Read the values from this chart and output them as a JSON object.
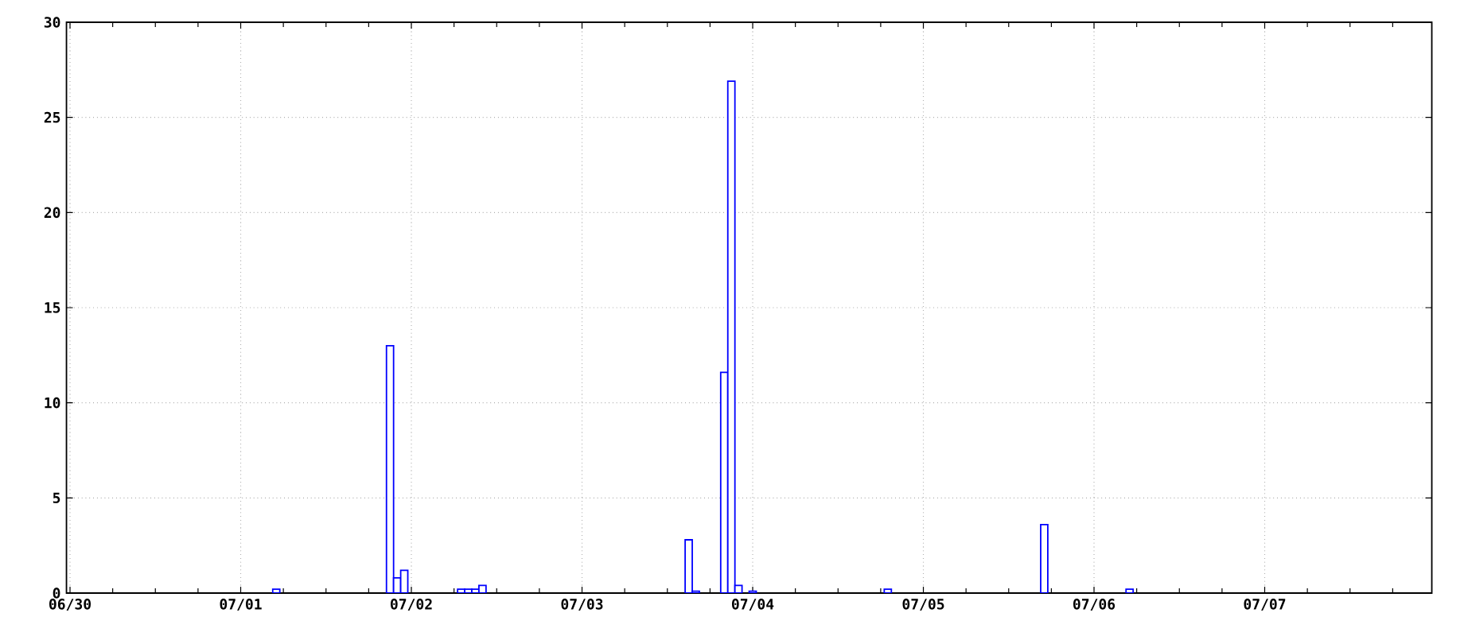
{
  "chart_data": {
    "type": "bar",
    "categories": [
      "06/30",
      null,
      null,
      null,
      null,
      null,
      null,
      null,
      null,
      null,
      null,
      null,
      null,
      null,
      null,
      null,
      null,
      null,
      null,
      null,
      null,
      null,
      null,
      null,
      "07/01",
      null,
      null,
      null,
      null,
      null,
      null,
      null,
      null,
      null,
      null,
      null,
      null,
      null,
      null,
      null,
      null,
      null,
      null,
      null,
      null,
      null,
      null,
      null,
      "07/02",
      null,
      null,
      null,
      null,
      null,
      null,
      null,
      null,
      null,
      null,
      null,
      null,
      null,
      null,
      null,
      null,
      null,
      null,
      null,
      null,
      null,
      null,
      null,
      "07/03",
      null,
      null,
      null,
      null,
      null,
      null,
      null,
      null,
      null,
      null,
      null,
      null,
      null,
      null,
      null,
      null,
      null,
      null,
      null,
      null,
      null,
      null,
      null,
      "07/04",
      null,
      null,
      null,
      null,
      null,
      null,
      null,
      null,
      null,
      null,
      null,
      null,
      null,
      null,
      null,
      null,
      null,
      null,
      null,
      null,
      null,
      null,
      null,
      "07/05",
      null,
      null,
      null,
      null,
      null,
      null,
      null,
      null,
      null,
      null,
      null,
      null,
      null,
      null,
      null,
      null,
      null,
      null,
      null,
      null,
      null,
      null,
      null,
      "07/06",
      null,
      null,
      null,
      null,
      null,
      null,
      null,
      null,
      null,
      null,
      null,
      null,
      null,
      null,
      null,
      null,
      null,
      null,
      null,
      null,
      null,
      null,
      null,
      "07/07",
      null,
      null,
      null,
      null,
      null,
      null,
      null,
      null,
      null,
      null,
      null,
      null,
      null,
      null,
      null,
      null,
      null,
      null,
      null,
      null,
      null,
      null,
      null
    ],
    "values": [
      null,
      null,
      null,
      null,
      null,
      null,
      null,
      null,
      null,
      null,
      null,
      null,
      null,
      null,
      null,
      null,
      null,
      null,
      null,
      null,
      null,
      null,
      null,
      null,
      null,
      null,
      null,
      null,
      null,
      0.2,
      null,
      null,
      null,
      null,
      null,
      null,
      null,
      null,
      null,
      null,
      null,
      null,
      null,
      null,
      null,
      13.0,
      0.8,
      1.2,
      null,
      null,
      null,
      null,
      null,
      null,
      null,
      0.2,
      0.2,
      0.2,
      0.4,
      null,
      null,
      null,
      null,
      null,
      null,
      null,
      null,
      null,
      null,
      null,
      null,
      null,
      null,
      null,
      null,
      null,
      null,
      null,
      null,
      null,
      null,
      null,
      null,
      null,
      null,
      null,
      null,
      2.8,
      0.1,
      null,
      null,
      null,
      11.6,
      26.9,
      0.4,
      null,
      0.1,
      null,
      null,
      null,
      null,
      null,
      null,
      null,
      null,
      null,
      null,
      null,
      null,
      null,
      null,
      null,
      null,
      null,
      null,
      0.2,
      null,
      null,
      null,
      null,
      null,
      null,
      null,
      null,
      null,
      null,
      null,
      null,
      null,
      null,
      null,
      null,
      null,
      null,
      null,
      null,
      null,
      3.6,
      null,
      null,
      null,
      null,
      null,
      null,
      null,
      null,
      null,
      null,
      null,
      0.2,
      null,
      null,
      null,
      null,
      null,
      null,
      null,
      null,
      null,
      null,
      null,
      null,
      null,
      null,
      null,
      null,
      null,
      null,
      null,
      null,
      null,
      null,
      null,
      null,
      null,
      null,
      null,
      null,
      null,
      null,
      null,
      null,
      null,
      null,
      null,
      null,
      null,
      null,
      null,
      null,
      null,
      null
    ],
    "color": "#0000ff",
    "ylim": [
      0,
      30
    ],
    "yticks": [
      0,
      5,
      10,
      15,
      20,
      25,
      30
    ],
    "grid": true
  }
}
